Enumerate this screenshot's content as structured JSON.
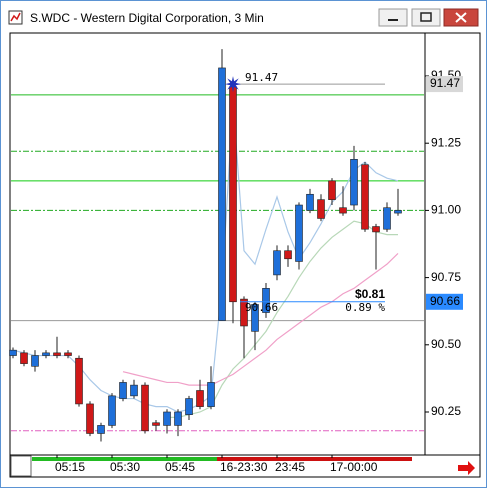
{
  "window": {
    "title": "S.WDC - Western Digital Corporation, 3 Min"
  },
  "chart_data": {
    "type": "candlestick",
    "categories": [
      null,
      null,
      null,
      null,
      "05:15",
      null,
      null,
      null,
      null,
      "05:30",
      null,
      null,
      null,
      null,
      "05:45",
      null,
      null,
      null,
      null,
      "16-23:30",
      null,
      null,
      null,
      null,
      "23:45",
      null,
      null,
      null,
      null,
      "17-00:00",
      null,
      null,
      null,
      null,
      null,
      null
    ],
    "open": [
      90.46,
      90.47,
      90.42,
      90.46,
      90.47,
      90.47,
      90.45,
      90.28,
      90.17,
      90.2,
      90.3,
      90.31,
      90.35,
      90.21,
      90.2,
      90.2,
      90.24,
      90.33,
      90.27,
      90.59,
      91.46,
      90.67,
      90.55,
      90.62,
      90.76,
      90.85,
      90.81,
      91.0,
      91.04,
      91.11,
      91.01,
      91.02,
      91.17,
      90.94,
      90.93,
      90.99
    ],
    "high": [
      90.49,
      90.48,
      90.48,
      90.48,
      90.53,
      90.48,
      90.46,
      90.29,
      90.21,
      90.32,
      90.37,
      90.37,
      90.36,
      90.22,
      90.26,
      90.26,
      90.31,
      90.37,
      90.42,
      91.6,
      91.47,
      90.68,
      90.66,
      90.73,
      90.87,
      90.87,
      91.03,
      91.08,
      91.06,
      91.12,
      91.09,
      91.24,
      91.18,
      90.95,
      91.03,
      91.08
    ],
    "low": [
      90.45,
      90.42,
      90.4,
      90.45,
      90.45,
      90.45,
      90.27,
      90.16,
      90.14,
      90.19,
      90.29,
      90.3,
      90.17,
      90.18,
      90.17,
      90.16,
      90.22,
      90.26,
      90.26,
      90.59,
      90.58,
      90.45,
      90.48,
      90.6,
      90.74,
      90.79,
      90.78,
      90.99,
      90.96,
      91.02,
      90.98,
      91.0,
      90.92,
      90.78,
      90.92,
      90.98
    ],
    "close": [
      90.48,
      90.43,
      90.46,
      90.47,
      90.46,
      90.46,
      90.28,
      90.17,
      90.2,
      90.31,
      90.36,
      90.35,
      90.18,
      90.2,
      90.25,
      90.25,
      90.3,
      90.27,
      90.36,
      91.53,
      90.66,
      90.57,
      90.65,
      90.71,
      90.85,
      90.82,
      91.02,
      91.06,
      90.97,
      91.04,
      90.99,
      91.19,
      90.93,
      90.92,
      91.01,
      91.0
    ],
    "up_color": "#1e6fd9",
    "down_color": "#d01818",
    "overlays": [
      {
        "color": "#a9c8e8",
        "values": [
          90.48,
          90.47,
          90.46,
          90.46,
          90.46,
          90.46,
          90.42,
          90.37,
          90.33,
          90.31,
          90.3,
          90.3,
          90.28,
          90.27,
          90.27,
          90.25,
          90.26,
          90.28,
          90.31,
          90.72,
          91.4,
          90.85,
          90.8,
          90.93,
          91.05,
          90.92,
          90.82,
          90.88,
          90.95,
          91.03,
          91.07,
          91.15,
          91.18,
          91.14,
          91.12,
          91.11
        ]
      },
      {
        "color": "#b8d8b8",
        "values": [
          null,
          null,
          null,
          null,
          null,
          null,
          null,
          null,
          null,
          null,
          null,
          null,
          null,
          null,
          90.23,
          90.23,
          90.24,
          90.25,
          90.27,
          90.35,
          90.41,
          90.45,
          90.5,
          90.55,
          90.62,
          90.68,
          90.75,
          90.81,
          90.86,
          90.9,
          90.93,
          90.96,
          90.95,
          90.92,
          90.91,
          90.91
        ]
      },
      {
        "color": "#f0a0c8",
        "values": [
          null,
          null,
          null,
          null,
          null,
          null,
          null,
          null,
          null,
          null,
          90.4,
          90.39,
          90.38,
          90.37,
          90.36,
          90.36,
          90.35,
          90.35,
          90.35,
          90.37,
          90.39,
          90.42,
          90.45,
          90.48,
          90.52,
          90.55,
          90.58,
          90.61,
          90.64,
          90.66,
          90.69,
          90.71,
          90.74,
          90.77,
          90.8,
          90.84
        ]
      }
    ],
    "levels": [
      {
        "value": 91.43,
        "color": "#22bb22",
        "style": "solid"
      },
      {
        "value": 91.22,
        "color": "#22aa22",
        "style": "dashed"
      },
      {
        "value": 91.11,
        "color": "#11cc11",
        "style": "solid"
      },
      {
        "value": 91.0,
        "color": "#22aa22",
        "style": "dashed"
      },
      {
        "value": 90.59,
        "color": "#999999",
        "style": "solid"
      },
      {
        "value": 90.18,
        "color": "#e060c0",
        "style": "dashed"
      }
    ],
    "high_marker": {
      "value": 91.47,
      "color": "#999999"
    },
    "last_price": {
      "value": 90.66,
      "color": "#2a8aff"
    },
    "change": {
      "value": 0.81,
      "label": "$0.81"
    },
    "change_pct": {
      "value": 0.89,
      "label": "0.89 %"
    },
    "ylim": [
      90.09,
      91.66
    ],
    "yticks": [
      {
        "value": 91.5,
        "label": "91.50"
      },
      91.25,
      {
        "value": 91.0,
        "label": "91.00"
      },
      90.75,
      {
        "value": 90.5,
        "label": "90.50"
      },
      90.25
    ]
  }
}
